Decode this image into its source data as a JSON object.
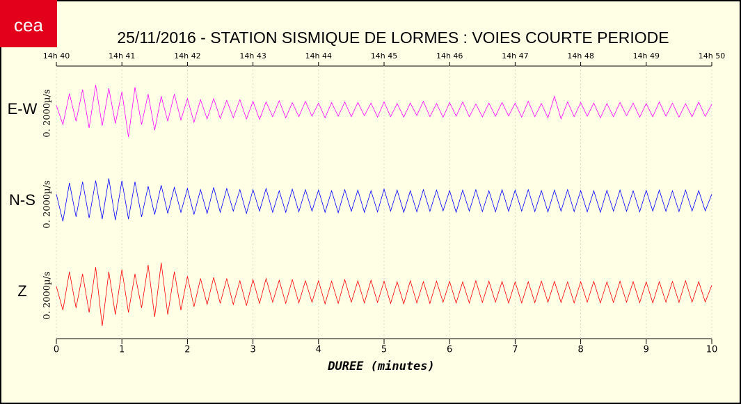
{
  "chart_data": {
    "type": "line",
    "logo": "cea",
    "title": "25/11/2016  -  STATION SISMIQUE DE LORMES : VOIES COURTE PERIODE",
    "xlabel": "DUREE (minutes)",
    "scale_label": "0. 2000µ/s",
    "xlim": [
      0,
      10
    ],
    "xticks": [
      0,
      1,
      2,
      3,
      4,
      5,
      6,
      7,
      8,
      9,
      10
    ],
    "top_ticks": [
      {
        "value": 0,
        "label": "14h 40"
      },
      {
        "value": 1,
        "label": "14h 41"
      },
      {
        "value": 2,
        "label": "14h 42"
      },
      {
        "value": 3,
        "label": "14h 43"
      },
      {
        "value": 4,
        "label": "14h 44"
      },
      {
        "value": 5,
        "label": "14h 45"
      },
      {
        "value": 6,
        "label": "14h 46"
      },
      {
        "value": 7,
        "label": "14h 47"
      },
      {
        "value": 8,
        "label": "14h 48"
      },
      {
        "value": 9,
        "label": "14h 49"
      },
      {
        "value": 10,
        "label": "14h 50"
      }
    ],
    "ylim": [
      -2000,
      2000
    ],
    "grid": true,
    "x": [
      0,
      0.1,
      0.2,
      0.3,
      0.4,
      0.5,
      0.6,
      0.7,
      0.8,
      0.9,
      1,
      1.1,
      1.2,
      1.3,
      1.4,
      1.5,
      1.6,
      1.7,
      1.8,
      1.9,
      2,
      2.1,
      2.2,
      2.3,
      2.4,
      2.5,
      2.6,
      2.7,
      2.8,
      2.9,
      3,
      3.1,
      3.2,
      3.3,
      3.4,
      3.5,
      3.6,
      3.7,
      3.8,
      3.9,
      4,
      4.1,
      4.2,
      4.3,
      4.4,
      4.5,
      4.6,
      4.7,
      4.8,
      4.9,
      5,
      5.1,
      5.2,
      5.3,
      5.4,
      5.5,
      5.6,
      5.7,
      5.8,
      5.9,
      6,
      6.1,
      6.2,
      6.3,
      6.4,
      6.5,
      6.6,
      6.7,
      6.8,
      6.9,
      7,
      7.1,
      7.2,
      7.3,
      7.4,
      7.5,
      7.6,
      7.7,
      7.8,
      7.9,
      8,
      8.1,
      8.2,
      8.3,
      8.4,
      8.5,
      8.6,
      8.7,
      8.8,
      8.9,
      9,
      9.1,
      9.2,
      9.3,
      9.4,
      9.5,
      9.6,
      9.7,
      9.8,
      9.9,
      10
    ],
    "series": [
      {
        "name": "E-W",
        "color": "#ff00ff",
        "values": [
          200,
          -650,
          720,
          -500,
          900,
          -800,
          1100,
          -700,
          950,
          -600,
          800,
          -1200,
          1000,
          -650,
          700,
          -900,
          600,
          -500,
          700,
          -450,
          500,
          -550,
          450,
          -400,
          500,
          -380,
          420,
          -350,
          450,
          -400,
          380,
          -420,
          350,
          -300,
          400,
          -350,
          320,
          -300,
          380,
          -280,
          300,
          -350,
          320,
          -280,
          350,
          -300,
          330,
          -260,
          300,
          -320,
          350,
          -300,
          280,
          -320,
          300,
          -250,
          380,
          -300,
          280,
          -330,
          320,
          -280,
          350,
          -300,
          260,
          -310,
          300,
          -280,
          330,
          -270,
          300,
          -320,
          380,
          -300,
          280,
          -350,
          600,
          -400,
          350,
          -300,
          320,
          -280,
          300,
          -350,
          280,
          -300,
          330,
          -260,
          300,
          -320,
          280,
          -300,
          350,
          -280,
          300,
          -320,
          270,
          -300,
          340,
          -290,
          250
        ]
      },
      {
        "name": "N-S",
        "color": "#0000ff",
        "values": [
          300,
          -900,
          800,
          -700,
          850,
          -750,
          900,
          -800,
          1000,
          -850,
          900,
          -800,
          850,
          -700,
          650,
          -600,
          700,
          -550,
          600,
          -500,
          550,
          -600,
          500,
          -550,
          600,
          -500,
          550,
          -450,
          500,
          -550,
          500,
          -450,
          550,
          -500,
          450,
          -500,
          520,
          -480,
          500,
          -450,
          480,
          -500,
          450,
          -520,
          500,
          -460,
          480,
          -500,
          450,
          -480,
          520,
          -450,
          480,
          -500,
          450,
          -480,
          500,
          -460,
          480,
          -440,
          460,
          -500,
          480,
          -450,
          500,
          -470,
          450,
          -480,
          500,
          -460,
          480,
          -450,
          500,
          -470,
          460,
          -490,
          480,
          -450,
          500,
          -470,
          460,
          -480,
          450,
          -500,
          470,
          -450,
          480,
          -460,
          450,
          -480,
          470,
          -450,
          480,
          -460,
          450,
          -470,
          480,
          -450,
          460,
          -440,
          300
        ]
      },
      {
        "name": "Z",
        "color": "#ff0000",
        "values": [
          250,
          -800,
          900,
          -700,
          800,
          -900,
          1100,
          -1500,
          900,
          -1000,
          1000,
          -900,
          800,
          -700,
          1200,
          -1100,
          1300,
          -1000,
          900,
          -800,
          700,
          -650,
          600,
          -550,
          650,
          -500,
          600,
          -550,
          500,
          -600,
          550,
          -500,
          600,
          -450,
          520,
          -500,
          550,
          -480,
          500,
          -450,
          500,
          -520,
          480,
          -500,
          550,
          -450,
          500,
          -480,
          520,
          -460,
          480,
          -500,
          450,
          -520,
          500,
          -480,
          460,
          -500,
          480,
          -450,
          470,
          -490,
          450,
          -480,
          500,
          -460,
          480,
          -450,
          470,
          -490,
          450,
          -480,
          460,
          -470,
          480,
          -450,
          470,
          -460,
          450,
          -480,
          460,
          -450,
          470,
          -480,
          450,
          -460,
          480,
          -450,
          460,
          -470,
          450,
          -480,
          460,
          -450,
          470,
          -460,
          500,
          -450,
          460,
          -440,
          300
        ]
      }
    ]
  }
}
